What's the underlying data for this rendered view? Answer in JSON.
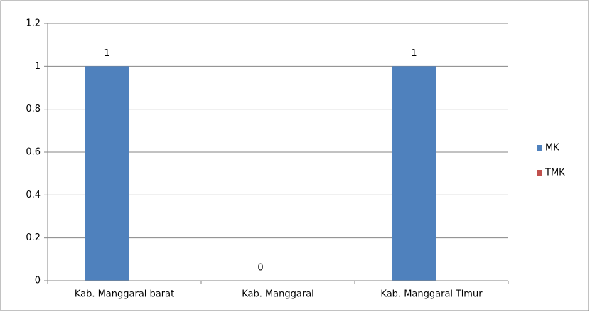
{
  "chart_data": {
    "type": "bar",
    "categories": [
      "Kab. Manggarai barat",
      "Kab. Manggarai",
      "Kab. Manggarai Timur"
    ],
    "series": [
      {
        "name": "MK",
        "color": "#4f81bd",
        "values": [
          1,
          0,
          1
        ],
        "show_labels": true
      },
      {
        "name": "TMK",
        "color": "#c0504d",
        "values": [
          0,
          0,
          0
        ],
        "show_labels": false
      }
    ],
    "ylim": [
      0,
      1.2
    ],
    "yticks": [
      0,
      0.2,
      0.4,
      0.6,
      0.8,
      1,
      1.2
    ],
    "grid": true,
    "legend": "right"
  }
}
